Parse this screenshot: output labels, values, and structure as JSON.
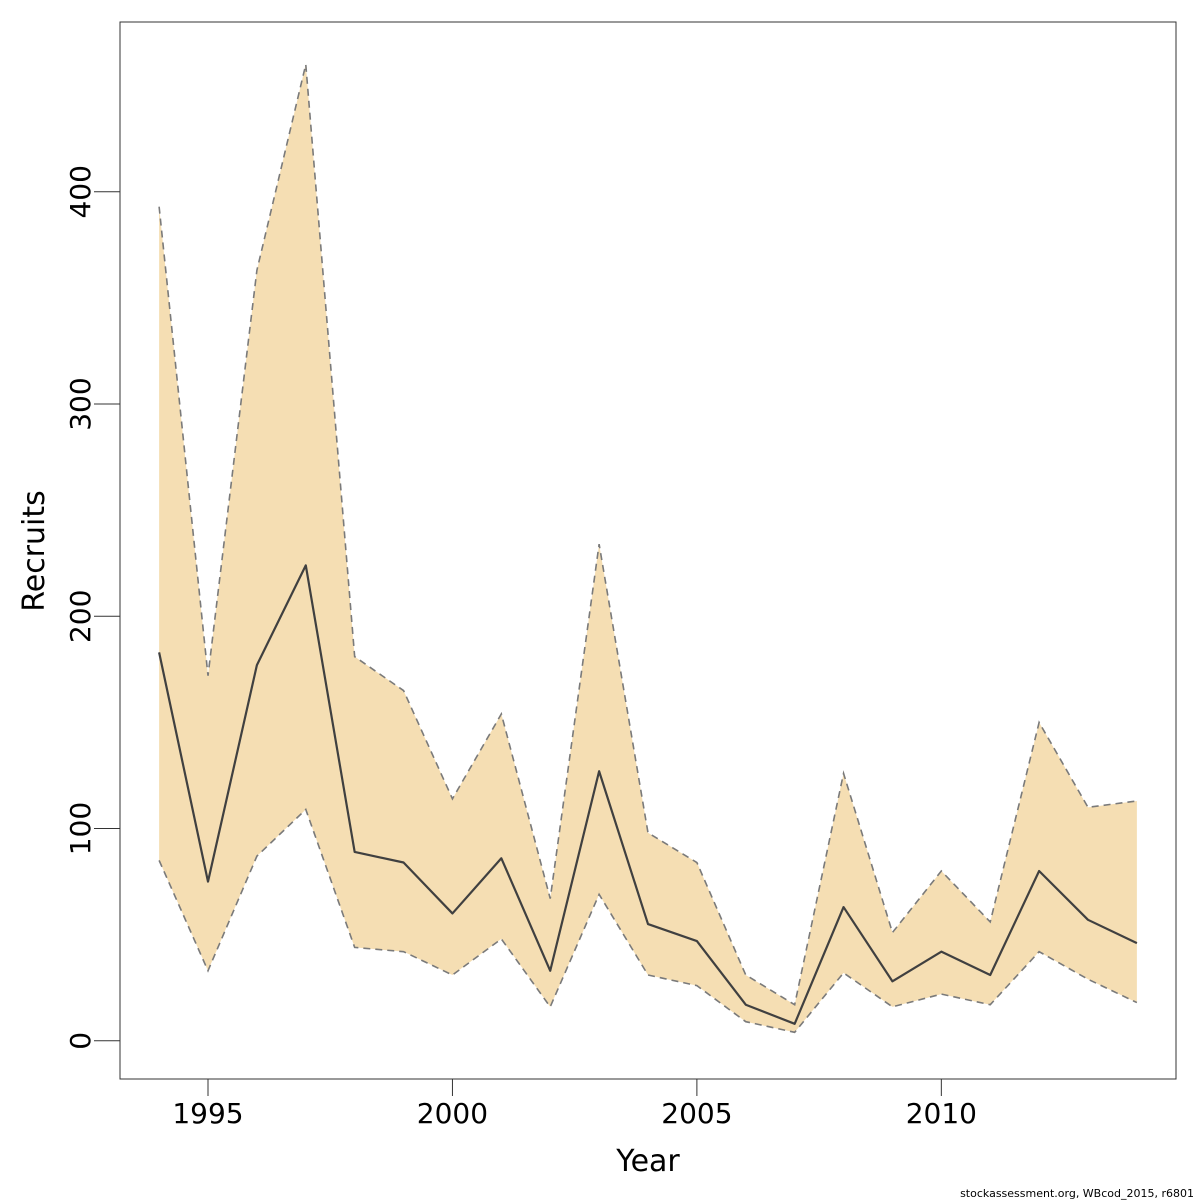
{
  "chart_data": {
    "type": "line",
    "title": "",
    "xlabel": "Year",
    "ylabel": "Recruits",
    "xlim": [
      1993.2,
      2014.8
    ],
    "ylim": [
      -18,
      480
    ],
    "x_ticks": [
      1995,
      2000,
      2005,
      2010
    ],
    "y_ticks": [
      0,
      100,
      200,
      300,
      400
    ],
    "grid": false,
    "legend": "none",
    "band_color": "#f5deb3",
    "line_color": "#404040",
    "band_edge_color": "#7a7a7a",
    "x": [
      1994,
      1995,
      1996,
      1997,
      1998,
      1999,
      2000,
      2001,
      2002,
      2003,
      2004,
      2005,
      2006,
      2007,
      2008,
      2009,
      2010,
      2011,
      2012,
      2013,
      2014
    ],
    "series": [
      {
        "role": "estimate",
        "values": [
          183,
          75,
          177,
          224,
          89,
          84,
          60,
          86,
          33,
          127,
          55,
          47,
          17,
          8,
          63,
          28,
          42,
          31,
          80,
          57,
          46
        ]
      },
      {
        "role": "upper",
        "values": [
          393,
          172,
          363,
          460,
          181,
          165,
          114,
          154,
          67,
          234,
          98,
          84,
          31,
          17,
          126,
          51,
          80,
          56,
          150,
          110,
          113
        ]
      },
      {
        "role": "lower",
        "values": [
          85,
          33,
          87,
          109,
          44,
          42,
          31,
          48,
          16,
          69,
          31,
          26,
          9,
          4,
          32,
          16,
          22,
          17,
          42,
          29,
          18
        ]
      }
    ]
  },
  "footer": "stockassessment.org, WBcod_2015, r6801"
}
